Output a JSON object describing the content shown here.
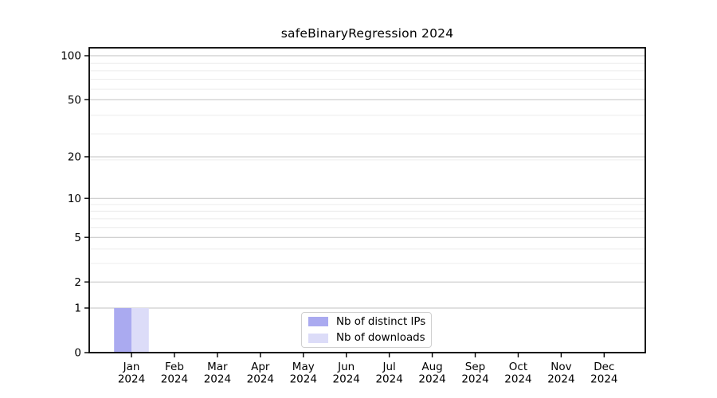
{
  "title": "safeBinaryRegression 2024",
  "chart_data": {
    "type": "bar",
    "title": "safeBinaryRegression 2024",
    "categories": [
      "Jan 2024",
      "Feb 2024",
      "Mar 2024",
      "Apr 2024",
      "May 2024",
      "Jun 2024",
      "Jul 2024",
      "Aug 2024",
      "Sep 2024",
      "Oct 2024",
      "Nov 2024",
      "Dec 2024"
    ],
    "series": [
      {
        "name": "Nb of distinct IPs",
        "color": "#aaaaf0",
        "values": [
          1,
          0,
          0,
          0,
          0,
          0,
          0,
          0,
          0,
          0,
          0,
          0
        ]
      },
      {
        "name": "Nb of downloads",
        "color": "#dcdcf8",
        "values": [
          1,
          0,
          0,
          0,
          0,
          0,
          0,
          0,
          0,
          0,
          0,
          0
        ]
      }
    ],
    "xlabel": "",
    "ylabel": "",
    "yscale": "log1p",
    "ylim": [
      0,
      100
    ],
    "ytick_values": [
      0,
      1,
      2,
      5,
      10,
      20,
      50,
      100
    ],
    "ytick_labels": [
      "0",
      "1",
      "2",
      "5",
      "10",
      "20",
      "50",
      "100"
    ],
    "yminor_values": [
      3,
      4,
      6,
      7,
      8,
      9,
      19,
      29,
      39,
      59,
      69,
      79,
      89
    ],
    "grid": "horizontal major + minor",
    "legend_position": "lower center inside plot"
  },
  "colors": {
    "grid_major": "#c2c2c2",
    "grid_minor": "#ececec",
    "axis": "#000000",
    "background": "#ffffff",
    "legend_border": "#d0d0d0"
  }
}
